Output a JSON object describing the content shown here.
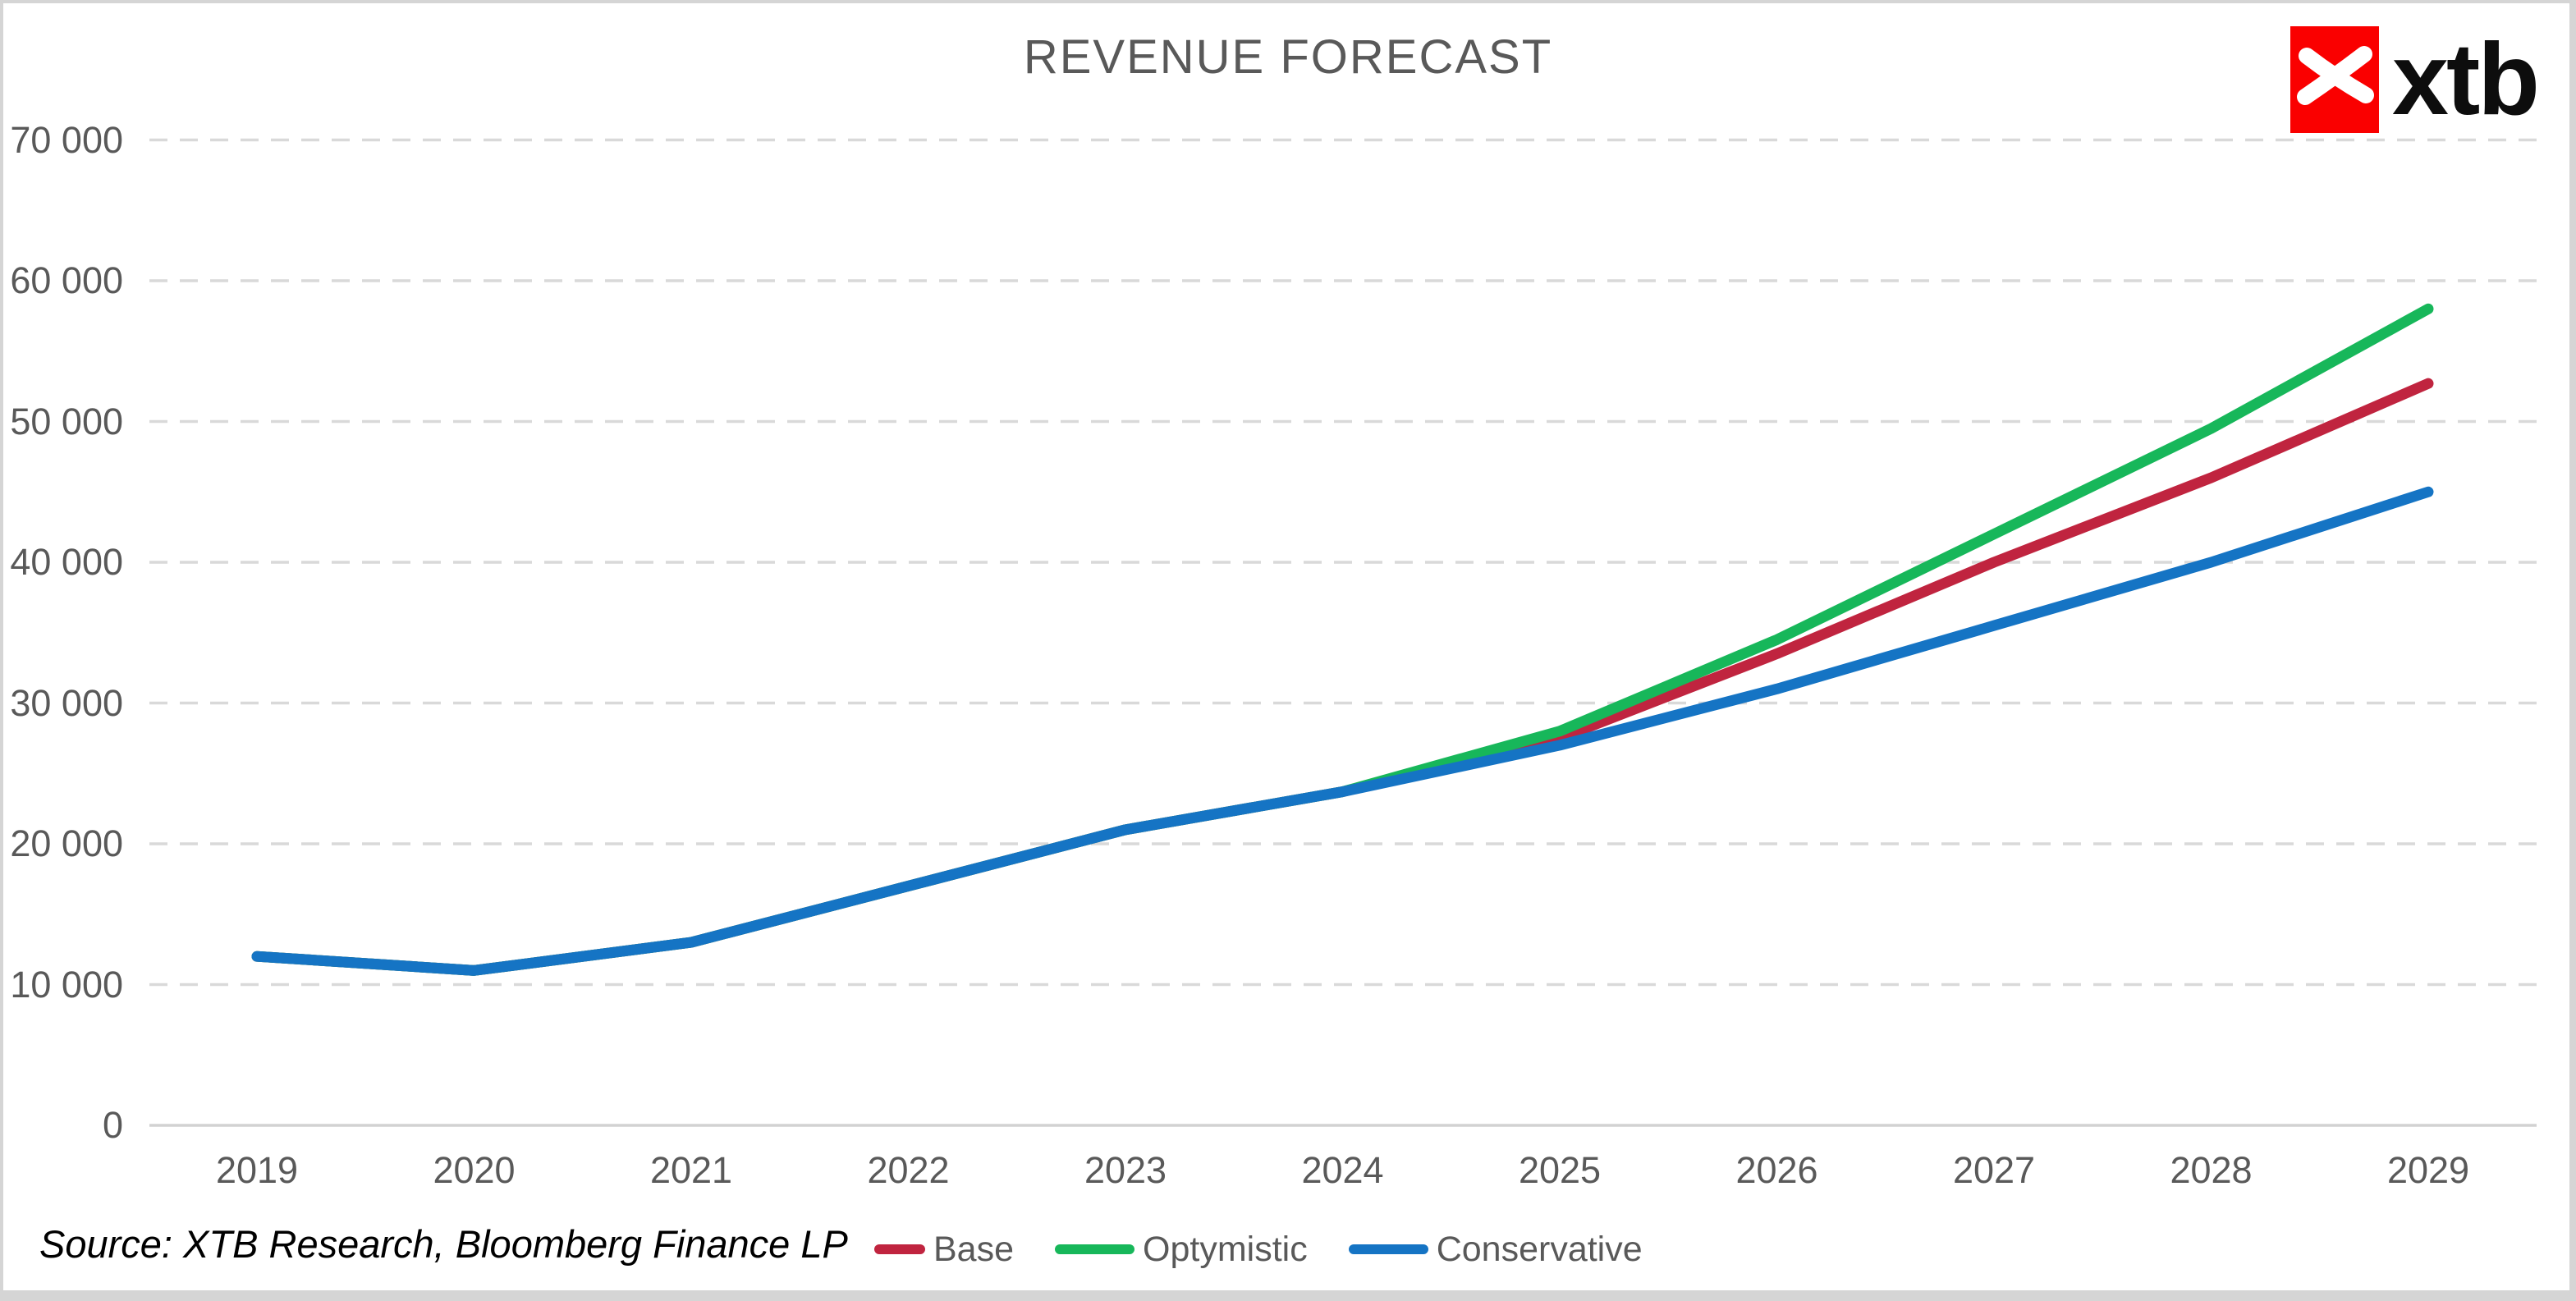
{
  "header": {
    "title": "REVENUE FORECAST"
  },
  "logo": {
    "wordmark": "xtb",
    "square_color": "#fa0000",
    "text_color": "#0d0d0d"
  },
  "source_note": "Source: XTB Research, Bloomberg Finance LP",
  "legend": {
    "position": "bottom",
    "items": [
      {
        "label": "Base",
        "color": "#c0243f"
      },
      {
        "label": "Optymistic",
        "color": "#17b75a"
      },
      {
        "label": "Conservative",
        "color": "#1574c4"
      }
    ]
  },
  "chart_data": {
    "type": "line",
    "title": "REVENUE FORECAST",
    "xlabel": "",
    "ylabel": "",
    "grid": "horizontal-dashed",
    "grid_color": "#d9d9d9",
    "axis_line_color": "#d2d2d2",
    "ylim": [
      0,
      73000
    ],
    "categories": [
      "2019",
      "2020",
      "2021",
      "2022",
      "2023",
      "2024",
      "2025",
      "2026",
      "2027",
      "2028",
      "2029"
    ],
    "y_ticks": [
      {
        "value": 0,
        "label": "0"
      },
      {
        "value": 10000,
        "label": "10 000"
      },
      {
        "value": 20000,
        "label": "20 000"
      },
      {
        "value": 30000,
        "label": "30 000"
      },
      {
        "value": 40000,
        "label": "40 000"
      },
      {
        "value": 50000,
        "label": "50 000"
      },
      {
        "value": 60000,
        "label": "60 000"
      },
      {
        "value": 70000,
        "label": "70 000"
      }
    ],
    "series": [
      {
        "name": "Base",
        "color": "#c0243f",
        "values": [
          12000,
          11000,
          13000,
          17000,
          21000,
          23700,
          27500,
          33500,
          40000,
          46000,
          52700
        ]
      },
      {
        "name": "Optymistic",
        "color": "#17b75a",
        "values": [
          12000,
          11000,
          13000,
          17000,
          21000,
          23700,
          28000,
          34500,
          42000,
          49500,
          58000
        ]
      },
      {
        "name": "Conservative",
        "color": "#1574c4",
        "values": [
          12000,
          11000,
          13000,
          17000,
          21000,
          23700,
          27000,
          31000,
          35500,
          40000,
          45000
        ]
      }
    ]
  }
}
